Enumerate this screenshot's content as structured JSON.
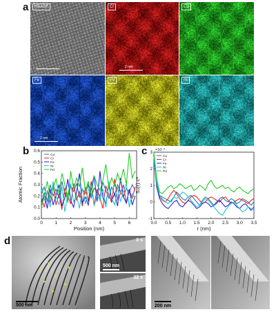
{
  "panels": {
    "a": {
      "letter": "a",
      "tiles": [
        {
          "label": "HAADF",
          "color": "#bdbdbd",
          "base": "#1c1c1c"
        },
        {
          "label": "Cr",
          "color": "#ff2a2a",
          "base": "#4a0000"
        },
        {
          "label": "Co",
          "color": "#38ff38",
          "base": "#0b4a0b"
        },
        {
          "label": "Fe",
          "color": "#2f6cff",
          "base": "#001a55"
        },
        {
          "label": "Pd",
          "color": "#ffff3a",
          "base": "#5a5a00"
        },
        {
          "label": "Ni",
          "color": "#3cf0f0",
          "base": "#064848"
        }
      ],
      "scalebar_label": "2 nm"
    },
    "b": {
      "letter": "b"
    },
    "c": {
      "letter": "c"
    },
    "d": {
      "letter": "d",
      "image1_scale": "500 nm",
      "image2_scale": "500 nm",
      "image2_time_top": "0 s",
      "image2_time_bottom": "32 s",
      "image3_scale": "200 nm"
    }
  },
  "chart_data": [
    {
      "type": "line",
      "xlabel": "Position (nm)",
      "ylabel": "Atomic Fraction",
      "xlim": [
        0,
        6.5
      ],
      "ylim": [
        0,
        0.6
      ],
      "xticks": [
        0,
        1,
        2,
        3,
        4,
        5,
        6
      ],
      "yticks": [
        0.0,
        0.1,
        0.2,
        0.3,
        0.4,
        0.5,
        0.6
      ],
      "legend_position": "top-left",
      "x": [
        0.0,
        0.2,
        0.4,
        0.6,
        0.8,
        1.0,
        1.2,
        1.4,
        1.6,
        1.8,
        2.0,
        2.2,
        2.4,
        2.6,
        2.8,
        3.0,
        3.2,
        3.4,
        3.6,
        3.8,
        4.0,
        4.2,
        4.4,
        4.6,
        4.8,
        5.0,
        5.2,
        5.4,
        5.6,
        5.8,
        6.0,
        6.2,
        6.4
      ],
      "series": [
        {
          "name": "Co",
          "color": "#1f77b4",
          "values": [
            0.22,
            0.28,
            0.15,
            0.3,
            0.2,
            0.26,
            0.18,
            0.33,
            0.22,
            0.17,
            0.29,
            0.24,
            0.31,
            0.19,
            0.26,
            0.22,
            0.3,
            0.18,
            0.27,
            0.23,
            0.2,
            0.32,
            0.25,
            0.18,
            0.28,
            0.21,
            0.3,
            0.24,
            0.19,
            0.27,
            0.23,
            0.3,
            0.25
          ]
        },
        {
          "name": "Cr",
          "color": "#e8231f",
          "values": [
            0.18,
            0.1,
            0.25,
            0.14,
            0.3,
            0.12,
            0.22,
            0.08,
            0.27,
            0.2,
            0.13,
            0.31,
            0.16,
            0.24,
            0.11,
            0.28,
            0.15,
            0.33,
            0.12,
            0.26,
            0.18,
            0.09,
            0.29,
            0.21,
            0.14,
            0.35,
            0.17,
            0.22,
            0.3,
            0.13,
            0.25,
            0.18,
            0.28
          ]
        },
        {
          "name": "Fe",
          "color": "#2222dd",
          "values": [
            0.14,
            0.22,
            0.09,
            0.26,
            0.12,
            0.2,
            0.3,
            0.11,
            0.18,
            0.35,
            0.16,
            0.1,
            0.24,
            0.4,
            0.14,
            0.19,
            0.12,
            0.27,
            0.38,
            0.15,
            0.42,
            0.18,
            0.13,
            0.3,
            0.16,
            0.22,
            0.11,
            0.36,
            0.19,
            0.14,
            0.26,
            0.12,
            0.2
          ]
        },
        {
          "name": "Ni",
          "color": "#22c8c8",
          "values": [
            0.3,
            0.16,
            0.24,
            0.1,
            0.33,
            0.2,
            0.12,
            0.28,
            0.06,
            0.22,
            0.31,
            0.15,
            0.2,
            0.09,
            0.27,
            0.13,
            0.25,
            0.3,
            0.11,
            0.21,
            0.16,
            0.26,
            0.1,
            0.33,
            0.18,
            0.12,
            0.28,
            0.15,
            0.24,
            0.31,
            0.1,
            0.22,
            0.18
          ]
        },
        {
          "name": "Pd",
          "color": "#22cc22",
          "values": [
            0.1,
            0.2,
            0.33,
            0.18,
            0.27,
            0.35,
            0.22,
            0.4,
            0.3,
            0.14,
            0.42,
            0.26,
            0.36,
            0.28,
            0.45,
            0.24,
            0.33,
            0.2,
            0.38,
            0.3,
            0.25,
            0.34,
            0.48,
            0.27,
            0.36,
            0.29,
            0.4,
            0.32,
            0.44,
            0.3,
            0.58,
            0.36,
            0.42
          ]
        }
      ]
    },
    {
      "type": "line",
      "xlabel": "r (nm)",
      "ylabel": "S₀(r)·c²",
      "axis_multiplier": "×10⁻³",
      "xlim": [
        0,
        3.5
      ],
      "ylim": [
        -1,
        3
      ],
      "xticks": [
        0.0,
        0.5,
        1.0,
        1.5,
        2.0,
        2.5,
        3.0,
        3.5
      ],
      "yticks": [
        -1,
        0,
        1,
        2,
        3
      ],
      "legend_position": "top-left",
      "x": [
        0.0,
        0.1,
        0.2,
        0.3,
        0.4,
        0.5,
        0.6,
        0.7,
        0.8,
        0.9,
        1.0,
        1.1,
        1.2,
        1.3,
        1.4,
        1.5,
        1.6,
        1.7,
        1.8,
        1.9,
        2.0,
        2.1,
        2.2,
        2.3,
        2.4,
        2.5,
        2.6,
        2.7,
        2.8,
        2.9,
        3.0,
        3.1,
        3.2,
        3.3,
        3.4,
        3.5
      ],
      "series": [
        {
          "name": "Co",
          "color": "#1f77b4",
          "values": [
            2.8,
            1.2,
            0.4,
            0.3,
            0.2,
            0.1,
            0.0,
            0.3,
            0.6,
            0.4,
            0.2,
            0.1,
            0.3,
            0.4,
            0.2,
            0.0,
            -0.2,
            0.1,
            0.3,
            0.2,
            0.0,
            -0.2,
            -0.1,
            0.2,
            0.3,
            0.1,
            0.0,
            0.2,
            0.1,
            -0.1,
            0.0,
            0.2,
            0.1,
            0.0,
            -0.2,
            0.0
          ]
        },
        {
          "name": "Cr",
          "color": "#e8231f",
          "values": [
            2.9,
            1.0,
            0.3,
            0.1,
            0.0,
            0.2,
            0.5,
            0.7,
            0.5,
            0.2,
            0.0,
            -0.1,
            0.1,
            0.3,
            0.4,
            0.3,
            0.1,
            -0.1,
            0.0,
            0.2,
            0.3,
            0.2,
            0.1,
            0.0,
            0.2,
            0.3,
            0.1,
            -0.1,
            0.0,
            0.1,
            0.2,
            0.1,
            0.0,
            -0.1,
            0.1,
            0.2
          ]
        },
        {
          "name": "Fe",
          "color": "#2222dd",
          "values": [
            2.6,
            0.9,
            0.2,
            -0.1,
            -0.3,
            -0.4,
            -0.2,
            0.0,
            0.1,
            -0.2,
            -0.3,
            -0.1,
            0.1,
            0.0,
            -0.2,
            -0.4,
            -0.3,
            -0.1,
            0.0,
            -0.1,
            -0.3,
            -0.2,
            0.0,
            0.1,
            -0.1,
            -0.3,
            -0.2,
            0.0,
            -0.1,
            -0.3,
            -0.4,
            -0.2,
            -0.1,
            -0.3,
            -0.5,
            -0.3
          ]
        },
        {
          "name": "Ni",
          "color": "#22c8c8",
          "values": [
            2.7,
            1.1,
            0.4,
            0.2,
            0.0,
            -0.1,
            0.1,
            0.3,
            0.2,
            0.4,
            0.6,
            0.5,
            0.3,
            0.1,
            -0.1,
            -0.3,
            -0.2,
            0.0,
            0.2,
            0.1,
            -0.1,
            -0.3,
            -0.5,
            -0.7,
            -0.8,
            -0.5,
            -0.3,
            -0.1,
            0.0,
            -0.2,
            -0.4,
            -0.6,
            -0.5,
            -0.3,
            -0.4,
            -0.5
          ]
        },
        {
          "name": "Pd",
          "color": "#22cc22",
          "values": [
            3.0,
            1.4,
            0.6,
            0.5,
            0.7,
            0.9,
            1.0,
            0.8,
            0.9,
            1.1,
            1.0,
            0.8,
            0.9,
            1.0,
            0.7,
            0.8,
            1.0,
            0.9,
            0.7,
            1.1,
            1.3,
            1.0,
            0.8,
            0.9,
            1.0,
            0.8,
            0.9,
            0.7,
            0.6,
            0.8,
            0.9,
            0.7,
            0.6,
            0.5,
            0.7,
            0.8
          ]
        }
      ]
    }
  ]
}
